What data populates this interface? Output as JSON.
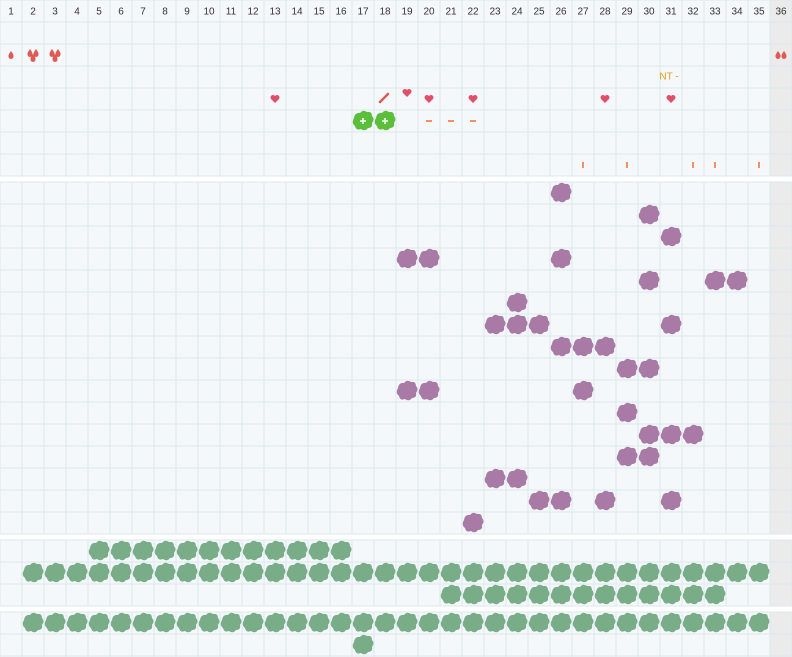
{
  "columns": [
    1,
    2,
    3,
    4,
    5,
    6,
    7,
    8,
    9,
    10,
    11,
    12,
    13,
    14,
    15,
    16,
    17,
    18,
    19,
    20,
    21,
    22,
    23,
    24,
    25,
    26,
    27,
    28,
    29,
    30,
    31,
    32,
    33,
    34,
    35,
    36
  ],
  "annotation": "NT -"
}
